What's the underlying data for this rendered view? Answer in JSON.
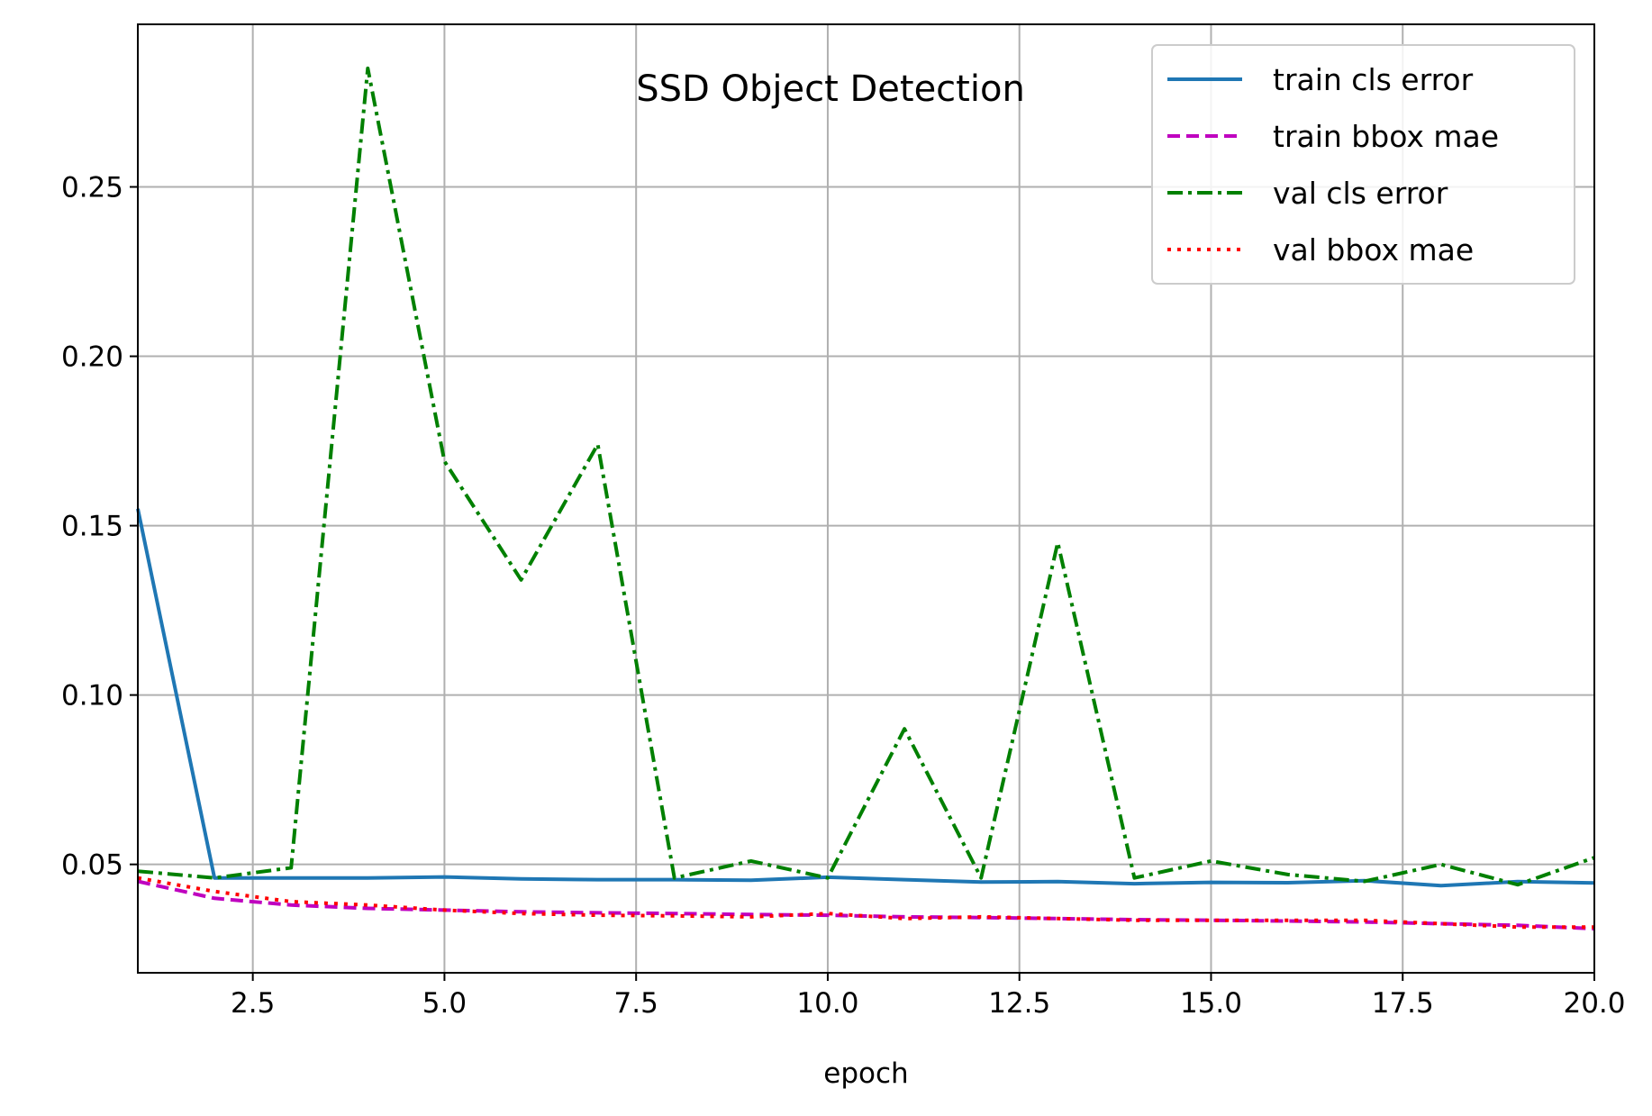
{
  "chart_data": {
    "type": "line",
    "title": "SSD Object Detection",
    "xlabel": "epoch",
    "ylabel": "",
    "xlim": [
      1,
      20
    ],
    "ylim": [
      0.018,
      0.298
    ],
    "xticks": [
      2.5,
      5.0,
      7.5,
      10.0,
      12.5,
      15.0,
      17.5,
      20.0
    ],
    "xtick_labels": [
      "2.5",
      "5.0",
      "7.5",
      "10.0",
      "12.5",
      "15.0",
      "17.5",
      "20.0"
    ],
    "yticks": [
      0.05,
      0.1,
      0.15,
      0.2,
      0.25
    ],
    "ytick_labels": [
      "0.05",
      "0.10",
      "0.15",
      "0.20",
      "0.25"
    ],
    "grid": true,
    "legend_position": "top-right",
    "x": [
      1,
      2,
      3,
      4,
      5,
      6,
      7,
      8,
      9,
      10,
      11,
      12,
      13,
      14,
      15,
      16,
      17,
      18,
      19,
      20
    ],
    "series": [
      {
        "name": "train cls error",
        "color": "#1f77b4",
        "style": "solid",
        "values": [
          0.155,
          0.046,
          0.046,
          0.046,
          0.0463,
          0.0457,
          0.0455,
          0.0455,
          0.0453,
          0.0462,
          0.0455,
          0.0448,
          0.0449,
          0.0443,
          0.0447,
          0.0446,
          0.0452,
          0.0437,
          0.0449,
          0.0445
        ]
      },
      {
        "name": "train bbox mae",
        "color": "#bf00bf",
        "style": "dashed",
        "values": [
          0.045,
          0.04,
          0.038,
          0.037,
          0.0365,
          0.036,
          0.0357,
          0.0355,
          0.0352,
          0.035,
          0.0345,
          0.0343,
          0.034,
          0.0337,
          0.0335,
          0.0333,
          0.033,
          0.0325,
          0.032,
          0.031
        ]
      },
      {
        "name": "val cls error",
        "color": "#008000",
        "style": "dashdot",
        "values": [
          0.048,
          0.046,
          0.049,
          0.285,
          0.169,
          0.134,
          0.174,
          0.046,
          0.051,
          0.046,
          0.09,
          0.046,
          0.145,
          0.046,
          0.051,
          0.047,
          0.045,
          0.05,
          0.044,
          0.052
        ]
      },
      {
        "name": "val bbox mae",
        "color": "#ff0000",
        "style": "dotted",
        "values": [
          0.046,
          0.042,
          0.039,
          0.038,
          0.0365,
          0.0355,
          0.035,
          0.0348,
          0.0345,
          0.0355,
          0.034,
          0.0345,
          0.034,
          0.0335,
          0.0335,
          0.0335,
          0.0335,
          0.0325,
          0.0315,
          0.0315
        ]
      }
    ]
  }
}
